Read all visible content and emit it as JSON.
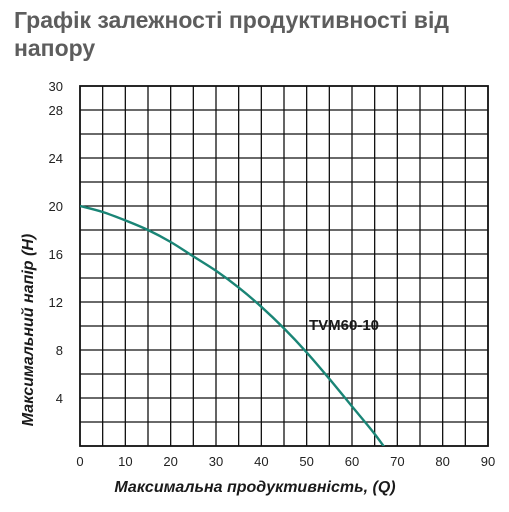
{
  "chart_data": {
    "type": "line",
    "title": "Графік залежності продуктивності від напору",
    "xlabel": "Максимальна продуктивність, (Q)",
    "ylabel": "Максимальний напір (Н)",
    "xlim": [
      0,
      90
    ],
    "ylim": [
      0,
      30
    ],
    "x_ticks": [
      0,
      10,
      20,
      30,
      40,
      50,
      60,
      70,
      80,
      90
    ],
    "y_ticks": [
      4,
      8,
      12,
      16,
      20,
      24,
      28,
      30
    ],
    "grid": true,
    "series": [
      {
        "name": "TVM60-10",
        "color": "#1a8576",
        "x": [
          0,
          5,
          10,
          15,
          20,
          25,
          30,
          35,
          40,
          45,
          50,
          55,
          60,
          65,
          70
        ],
        "y": [
          20.0,
          19.5,
          18.8,
          18.0,
          17.0,
          15.8,
          14.6,
          13.2,
          11.6,
          9.8,
          7.8,
          5.6,
          3.3,
          1.0,
          -1.6
        ]
      }
    ]
  }
}
